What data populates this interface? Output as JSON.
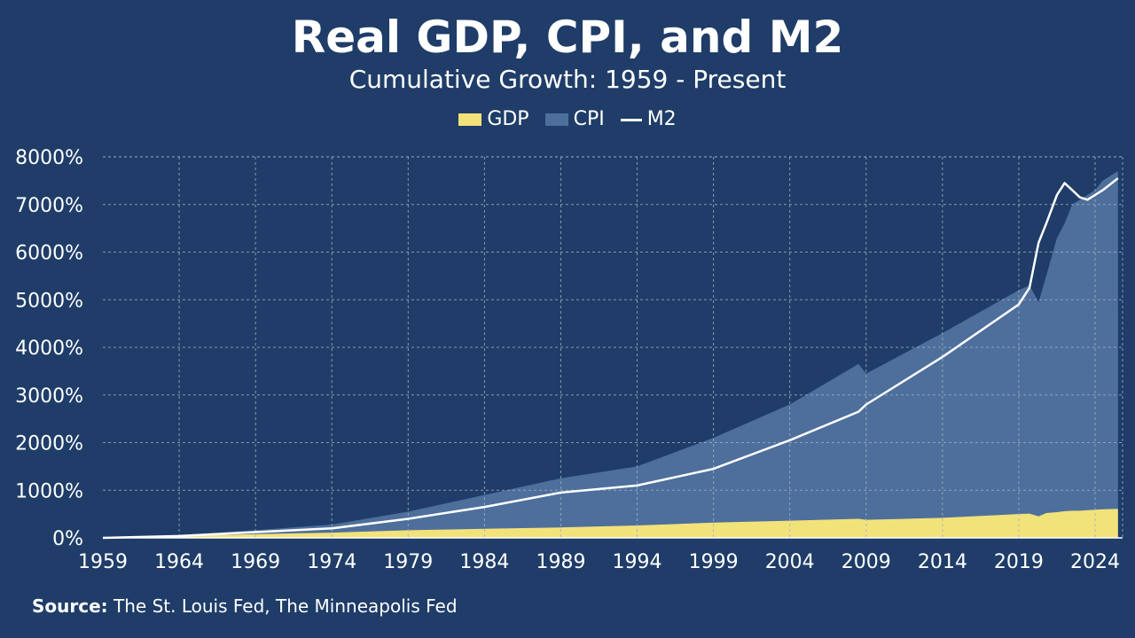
{
  "chart_data": {
    "type": "area",
    "title": "Real GDP, CPI, and M2",
    "subtitle": "Cumulative Growth: 1959 - Present",
    "xlabel": "",
    "ylabel": "",
    "xlim": [
      1959,
      2025.8
    ],
    "ylim": [
      0,
      8000
    ],
    "x_ticks": [
      "1959",
      "1964",
      "1969",
      "1974",
      "1979",
      "1984",
      "1989",
      "1994",
      "1999",
      "2004",
      "2009",
      "2014",
      "2019",
      "2024"
    ],
    "y_ticks": [
      "0%",
      "1000%",
      "2000%",
      "3000%",
      "4000%",
      "5000%",
      "6000%",
      "7000%",
      "8000%"
    ],
    "grid": true,
    "legend_position": "top-center",
    "colors": {
      "background": "#1f3d68",
      "GDP": "#f2e27a",
      "CPI": "#4e6f9b",
      "M2": "#ffffff",
      "grid": "#9fb0c8"
    },
    "x": [
      1959,
      1964,
      1969,
      1974,
      1979,
      1984,
      1989,
      1994,
      1999,
      2004,
      2008.5,
      2009,
      2014,
      2019,
      2019.7,
      2020.3,
      2020.8,
      2021.5,
      2022,
      2022.5,
      2023,
      2023.5,
      2024,
      2024.5,
      2025.5
    ],
    "series": [
      {
        "name": "GDP",
        "kind": "area",
        "values": [
          0,
          35,
          80,
          110,
          160,
          190,
          220,
          260,
          320,
          360,
          400,
          380,
          420,
          500,
          510,
          450,
          520,
          540,
          560,
          570,
          570,
          580,
          590,
          600,
          610
        ]
      },
      {
        "name": "CPI",
        "kind": "area",
        "values": [
          0,
          60,
          160,
          280,
          550,
          900,
          1250,
          1500,
          2100,
          2800,
          3650,
          3450,
          4300,
          5200,
          5300,
          4950,
          5500,
          6300,
          6600,
          7000,
          7100,
          7200,
          7300,
          7500,
          7700
        ]
      },
      {
        "name": "M2",
        "kind": "line",
        "values": [
          0,
          40,
          120,
          200,
          400,
          650,
          950,
          1100,
          1450,
          2050,
          2650,
          2800,
          3800,
          4900,
          5250,
          6200,
          6600,
          7200,
          7450,
          7300,
          7150,
          7100,
          7200,
          7300,
          7550
        ]
      }
    ],
    "source_label": "Source:",
    "source_text": "The St. Louis Fed, The Minneapolis Fed"
  }
}
